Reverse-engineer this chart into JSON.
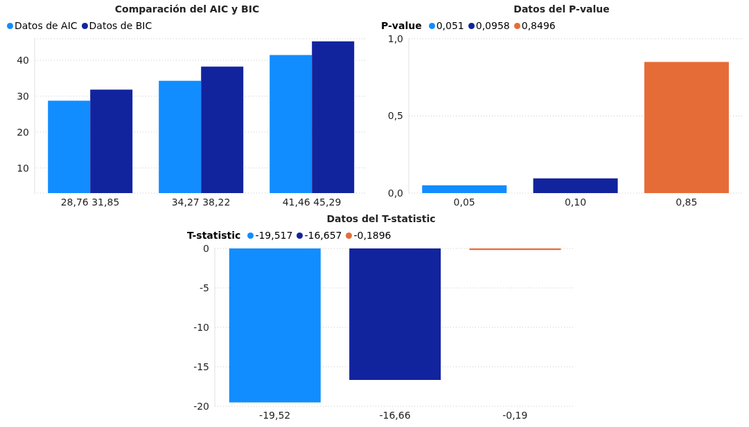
{
  "chart_data": [
    {
      "type": "bar",
      "title": "Comparación del AIC y BIC",
      "categories": [
        "28,76 31,85",
        "34,27 38,22",
        "41,46 45,29"
      ],
      "series": [
        {
          "name": "Datos de AIC",
          "color": "#118dff",
          "values": [
            28.76,
            34.27,
            41.46
          ]
        },
        {
          "name": "Datos de BIC",
          "color": "#12239e",
          "values": [
            31.85,
            38.22,
            45.29
          ]
        }
      ],
      "ylim": [
        3,
        46
      ],
      "yticks": [
        10,
        20,
        30,
        40
      ],
      "grid": "y",
      "legend": "top left"
    },
    {
      "type": "bar",
      "title": "Datos del P-value",
      "legend_title": "P-value",
      "categories": [
        "0,05",
        "0,10",
        "0,85"
      ],
      "stacked": true,
      "series": [
        {
          "name": "0,051",
          "color": "#118dff",
          "values": [
            0.051,
            null,
            null
          ]
        },
        {
          "name": "0,0958",
          "color": "#12239e",
          "values": [
            null,
            0.0958,
            null
          ]
        },
        {
          "name": "0,8496",
          "color": "#e66c37",
          "values": [
            null,
            null,
            0.8496
          ]
        }
      ],
      "ylim": [
        0,
        1
      ],
      "yticks": [
        {
          "value": 0,
          "label": "0,0"
        },
        {
          "value": 0.5,
          "label": "0,5"
        },
        {
          "value": 1,
          "label": "1,0"
        }
      ],
      "grid": "y",
      "legend": "top left"
    },
    {
      "type": "bar",
      "title": "Datos del T-statistic",
      "legend_title": "T-statistic",
      "categories": [
        "-19,52",
        "-16,66",
        "-0,19"
      ],
      "stacked": true,
      "series": [
        {
          "name": "-19,517",
          "color": "#118dff",
          "values": [
            -19.517,
            null,
            null
          ]
        },
        {
          "name": "-16,657",
          "color": "#12239e",
          "values": [
            null,
            -16.657,
            null
          ]
        },
        {
          "name": "-0,1896",
          "color": "#e66c37",
          "values": [
            null,
            null,
            -0.1896
          ]
        }
      ],
      "ylim": [
        -20,
        0
      ],
      "yticks": [
        0,
        -5,
        -10,
        -15,
        -20
      ],
      "grid": "y",
      "legend": "top left"
    }
  ]
}
